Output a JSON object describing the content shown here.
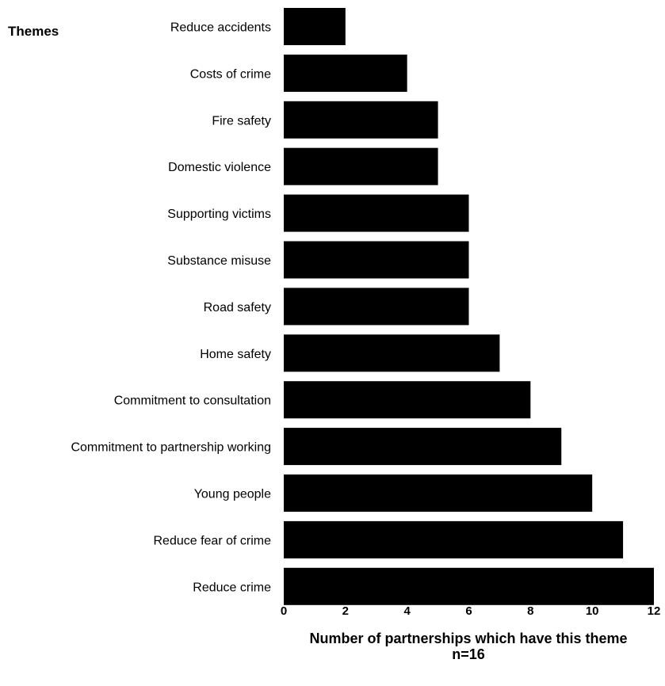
{
  "chart_data": {
    "type": "bar",
    "orientation": "horizontal",
    "category_axis_title": "Themes",
    "categories": [
      "Reduce accidents",
      "Costs of crime",
      "Fire safety",
      "Domestic violence",
      "Supporting victims",
      "Substance misuse",
      "Road safety",
      "Home safety",
      "Commitment to consultation",
      "Commitment to partnership working",
      "Young people",
      "Reduce fear of crime",
      "Reduce crime"
    ],
    "values": [
      2,
      4,
      5,
      5,
      6,
      6,
      6,
      7,
      8,
      9,
      10,
      11,
      12
    ],
    "xlabel": "Number of partnerships which have this theme",
    "xlabel_note": "n=16",
    "xlim": [
      0,
      12
    ],
    "xticks": [
      "0",
      "2",
      "4",
      "6",
      "8",
      "10",
      "12"
    ],
    "grid": false,
    "bar_color": "#000000"
  }
}
